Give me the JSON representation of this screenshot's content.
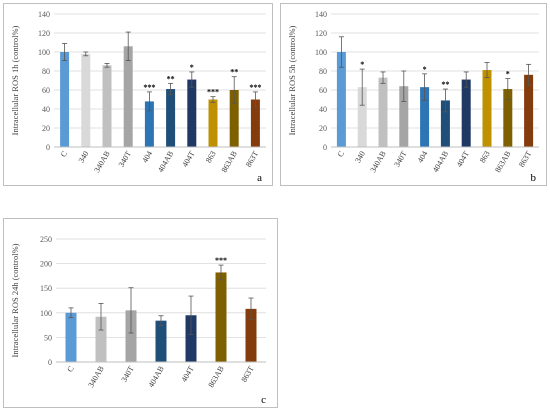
{
  "chart_data": [
    {
      "type": "bar",
      "panel": "a",
      "panel_label": "a",
      "ylabel": "Intracellular ROS 1h (control%)",
      "ylim": [
        0,
        140
      ],
      "yticks": [
        0,
        20,
        40,
        60,
        80,
        100,
        120,
        140
      ],
      "grid": true,
      "categories": [
        "C",
        "340",
        "340AB",
        "340T",
        "404",
        "404AB",
        "404T",
        "863",
        "863AB",
        "863T"
      ],
      "values": [
        100,
        98,
        86,
        106,
        48,
        61,
        71,
        50,
        60,
        50
      ],
      "errors": [
        9,
        2,
        2,
        15,
        10,
        6,
        8,
        3,
        14,
        8
      ],
      "significance": [
        "",
        "",
        "",
        "",
        "***",
        "**",
        "*",
        "***",
        "**",
        "***"
      ],
      "colors": [
        "#5b9bd5",
        "#d9d9d9",
        "#c0c0c0",
        "#a5a5a5",
        "#2e75b6",
        "#1f4e79",
        "#203864",
        "#bf9000",
        "#7f6000",
        "#843c0c"
      ]
    },
    {
      "type": "bar",
      "panel": "b",
      "panel_label": "b",
      "ylabel": "Intracellular ROS 5h (control%)",
      "ylim": [
        0,
        140
      ],
      "yticks": [
        0,
        20,
        40,
        60,
        80,
        100,
        120,
        140
      ],
      "grid": true,
      "categories": [
        "C",
        "340",
        "340AB",
        "340T",
        "404",
        "404AB",
        "404T",
        "863",
        "863AB",
        "863T"
      ],
      "values": [
        100,
        63,
        73,
        64,
        63,
        49,
        71,
        81,
        61,
        76
      ],
      "errors": [
        16,
        19,
        6,
        16,
        14,
        12,
        8,
        8,
        11,
        11
      ],
      "significance": [
        "",
        "*",
        "",
        "",
        "*",
        "**",
        "",
        "",
        "*",
        ""
      ],
      "colors": [
        "#5b9bd5",
        "#d9d9d9",
        "#c0c0c0",
        "#a5a5a5",
        "#2e75b6",
        "#1f4e79",
        "#203864",
        "#bf9000",
        "#7f6000",
        "#843c0c"
      ]
    },
    {
      "type": "bar",
      "panel": "c",
      "panel_label": "c",
      "ylabel": "Intracellular ROS 24h (control%)",
      "ylim": [
        0,
        250
      ],
      "yticks": [
        0,
        50,
        100,
        150,
        200,
        250
      ],
      "grid": true,
      "categories": [
        "C",
        "340AB",
        "340T",
        "404AB",
        "404T",
        "863AB",
        "863T"
      ],
      "values": [
        100,
        92,
        105,
        84,
        95,
        182,
        108
      ],
      "errors": [
        10,
        27,
        46,
        10,
        39,
        15,
        22
      ],
      "significance": [
        "",
        "",
        "",
        "",
        "",
        "***",
        ""
      ],
      "colors": [
        "#5b9bd5",
        "#c0c0c0",
        "#a5a5a5",
        "#1f4e79",
        "#203864",
        "#7f6000",
        "#843c0c"
      ]
    }
  ]
}
